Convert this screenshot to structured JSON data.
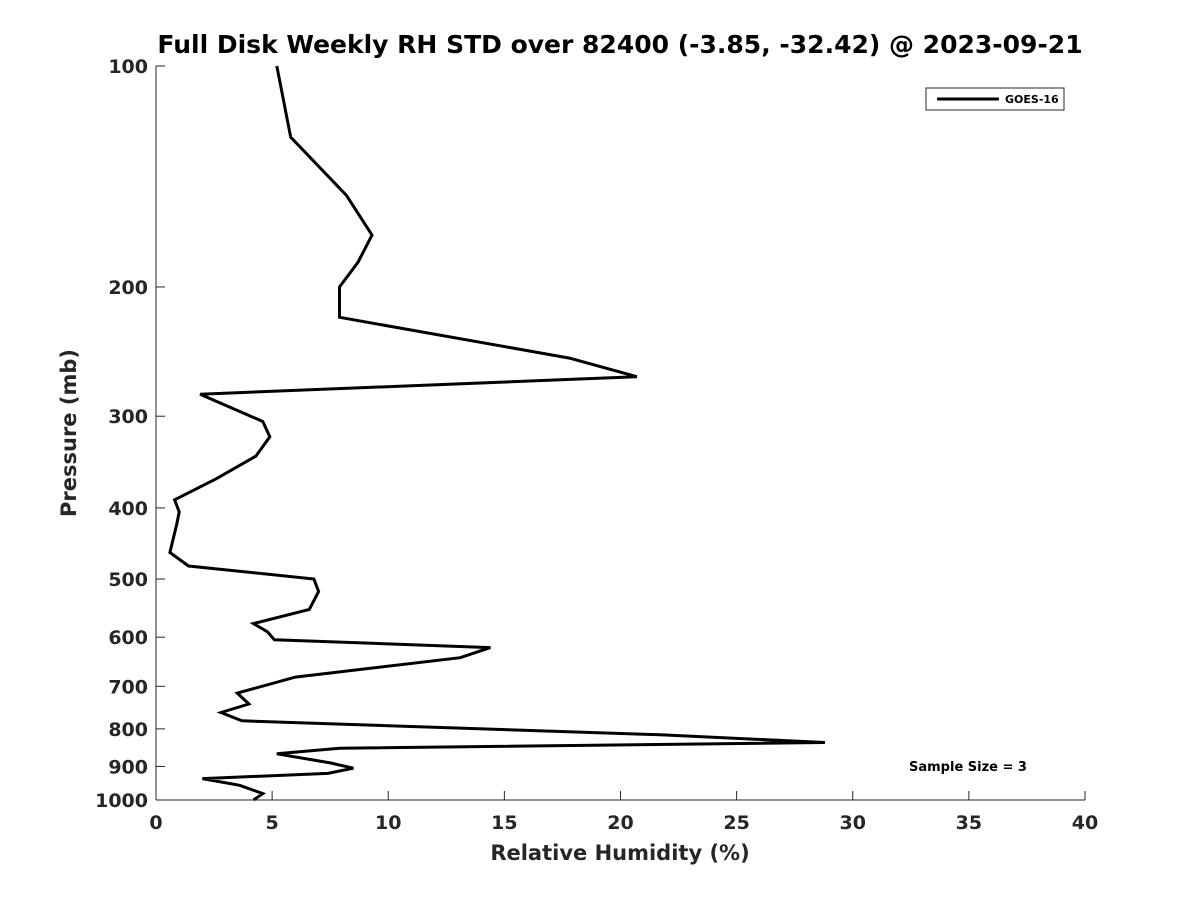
{
  "chart_data": {
    "type": "line",
    "title": "Full Disk Weekly RH STD over 82400 (-3.85, -32.42) @ 2023-09-21",
    "xlabel": "Relative Humidity (%)",
    "ylabel": "Pressure (mb)",
    "xlim": [
      0,
      40
    ],
    "ylim": [
      100,
      1000
    ],
    "yscale": "log",
    "y_reversed": true,
    "grid": false,
    "x_ticks": [
      0,
      5,
      10,
      15,
      20,
      25,
      30,
      35,
      40
    ],
    "y_ticks": [
      100,
      200,
      300,
      400,
      500,
      600,
      700,
      800,
      900,
      1000
    ],
    "legend_position": "top-right",
    "annotation": "Sample Size = 3",
    "series": [
      {
        "name": "GOES-16",
        "color": "#000000",
        "points": [
          [
            5.2,
            100
          ],
          [
            5.8,
            125
          ],
          [
            8.2,
            150
          ],
          [
            9.3,
            170
          ],
          [
            8.7,
            185
          ],
          [
            7.9,
            200
          ],
          [
            7.9,
            220
          ],
          [
            17.8,
            250
          ],
          [
            20.7,
            265
          ],
          [
            1.9,
            280
          ],
          [
            4.6,
            305
          ],
          [
            4.9,
            320
          ],
          [
            4.3,
            340
          ],
          [
            2.6,
            365
          ],
          [
            0.8,
            390
          ],
          [
            1.0,
            405
          ],
          [
            0.9,
            420
          ],
          [
            0.6,
            460
          ],
          [
            1.4,
            480
          ],
          [
            6.8,
            500
          ],
          [
            7.0,
            520
          ],
          [
            6.6,
            550
          ],
          [
            4.2,
            575
          ],
          [
            4.8,
            590
          ],
          [
            5.1,
            605
          ],
          [
            14.4,
            620
          ],
          [
            13.1,
            640
          ],
          [
            6.0,
            680
          ],
          [
            3.5,
            715
          ],
          [
            4.0,
            740
          ],
          [
            2.8,
            760
          ],
          [
            3.7,
            780
          ],
          [
            21.7,
            815
          ],
          [
            28.8,
            835
          ],
          [
            7.9,
            850
          ],
          [
            5.2,
            865
          ],
          [
            7.5,
            890
          ],
          [
            8.5,
            905
          ],
          [
            7.4,
            920
          ],
          [
            2.0,
            935
          ],
          [
            3.6,
            955
          ],
          [
            4.6,
            980
          ],
          [
            4.2,
            1000
          ]
        ]
      }
    ]
  }
}
